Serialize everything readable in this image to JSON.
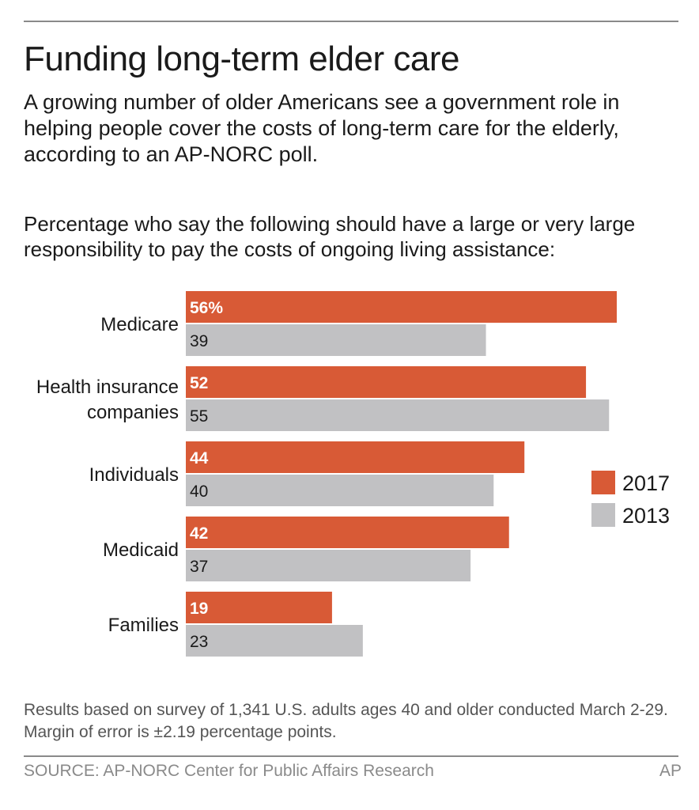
{
  "header": {
    "title": "Funding long-term elder care",
    "subtitle": "A growing number of older Americans see a government role in helping people cover the costs of long-term care for the elderly, according to an AP-NORC poll.",
    "question": "Percentage who say the following should have a large or very large responsibility to pay the costs of ongoing living assistance:"
  },
  "colors": {
    "series_2017": "#d85a36",
    "series_2013": "#c1c1c3"
  },
  "chart_data": {
    "type": "bar",
    "orientation": "horizontal",
    "categories": [
      "Medicare",
      "Health insurance companies",
      "Individuals",
      "Medicaid",
      "Families"
    ],
    "category_lines": [
      [
        "Medicare"
      ],
      [
        "Health insurance",
        "companies"
      ],
      [
        "Individuals"
      ],
      [
        "Medicaid"
      ],
      [
        "Families"
      ]
    ],
    "series": [
      {
        "name": "2017",
        "values": [
          56,
          52,
          44,
          42,
          19
        ],
        "labels": [
          "56%",
          "52",
          "44",
          "42",
          "19"
        ]
      },
      {
        "name": "2013",
        "values": [
          39,
          55,
          40,
          37,
          23
        ],
        "labels": [
          "39",
          "55",
          "40",
          "37",
          "23"
        ]
      }
    ],
    "xlim": [
      0,
      56
    ],
    "grid": false,
    "legend_position": "right"
  },
  "footer": {
    "note": "Results based on survey of 1,341 U.S. adults ages 40 and older conducted March 2-29. Margin of error is ±2.19 percentage points.",
    "source": "SOURCE: AP-NORC Center for Public Affairs Research",
    "credit": "AP"
  }
}
